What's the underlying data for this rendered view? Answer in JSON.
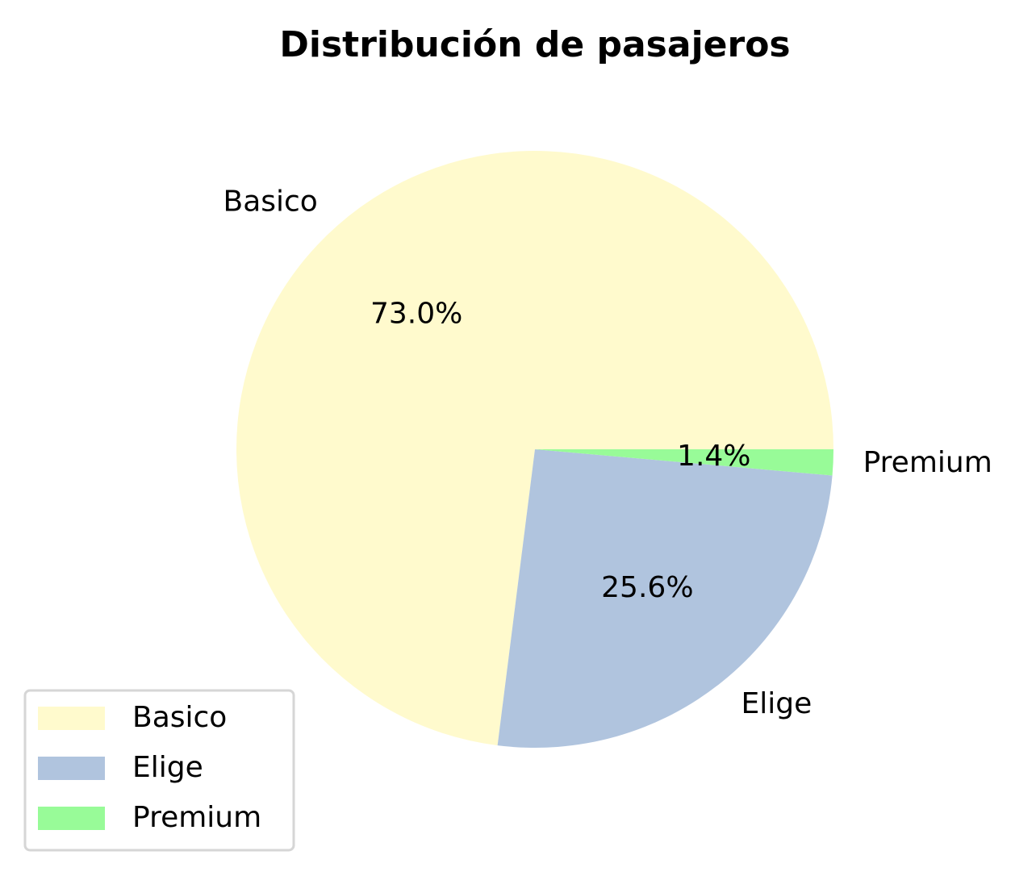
{
  "chart_data": {
    "type": "pie",
    "title": "Distribución de pasajeros",
    "slices": [
      {
        "label": "Basico",
        "value": 73.0,
        "pct_label": "73.0%",
        "color": "#FFFACD"
      },
      {
        "label": "Elige",
        "value": 25.6,
        "pct_label": "25.6%",
        "color": "#B0C4DE"
      },
      {
        "label": "Premium",
        "value": 1.4,
        "pct_label": "1.4%",
        "color": "#98FB98"
      }
    ],
    "start_angle_deg": 0,
    "direction": "counterclockwise",
    "legend": {
      "position": "lower-left",
      "entries": [
        "Basico",
        "Elige",
        "Premium"
      ]
    }
  }
}
